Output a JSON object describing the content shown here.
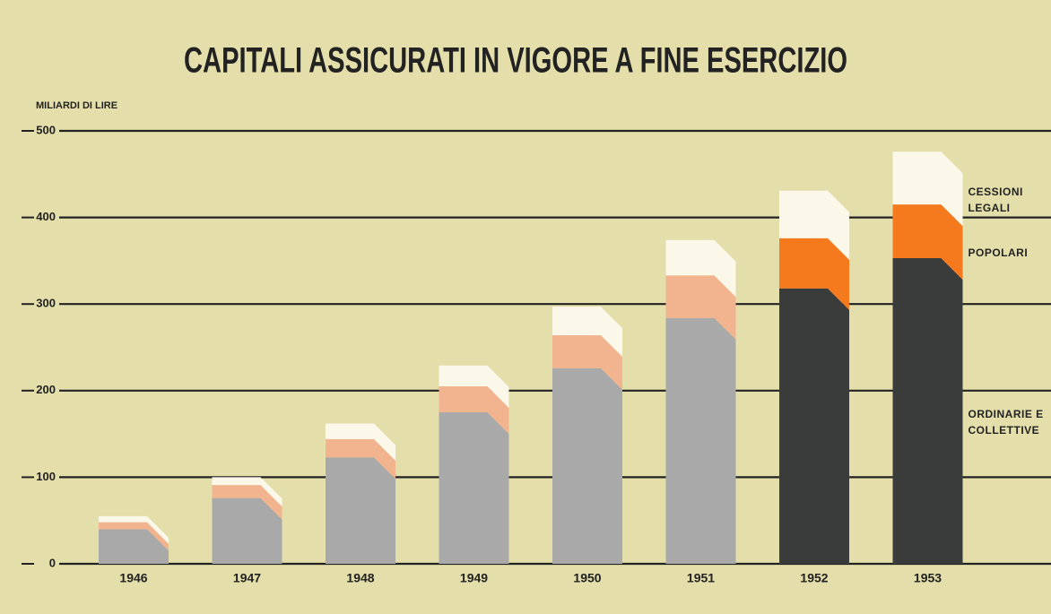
{
  "chart_data": {
    "type": "stacked_bar",
    "title": "CAPITALI ASSICURATI IN VIGORE A FINE ESERCIZIO",
    "y_label": "MILIARDI DI LIRE",
    "categories": [
      "1946",
      "1947",
      "1948",
      "1949",
      "1950",
      "1951",
      "1952",
      "1953"
    ],
    "series": [
      {
        "name": "ORDINARIE E COLLETTIVE",
        "values": [
          40,
          76,
          123,
          175,
          226,
          284,
          318,
          353
        ],
        "colors": [
          "#a9a9a9",
          "#a9a9a9",
          "#a9a9a9",
          "#a9a9a9",
          "#a9a9a9",
          "#a9a9a9",
          "#3a3b3b",
          "#3a3b3b"
        ]
      },
      {
        "name": "POPOLARI",
        "values": [
          8,
          15,
          21,
          30,
          38,
          49,
          58,
          62
        ],
        "colors": [
          "#f1b48e",
          "#f1b48e",
          "#f1b48e",
          "#f1b48e",
          "#f1b48e",
          "#f1b48e",
          "#f57a1e",
          "#f57a1e"
        ]
      },
      {
        "name": "CESSIONI LEGALI",
        "values": [
          7,
          9,
          18,
          24,
          33,
          41,
          55,
          61
        ],
        "colors": [
          "#fbf8ea",
          "#fbf8ea",
          "#fbf8ea",
          "#fbf8ea",
          "#fbf8ea",
          "#fbf8ea",
          "#fbf8ea",
          "#fbf8ea"
        ]
      }
    ],
    "ylim": [
      0,
      500
    ],
    "yticks": [
      0,
      100,
      200,
      300,
      400,
      500
    ],
    "grid": true
  }
}
